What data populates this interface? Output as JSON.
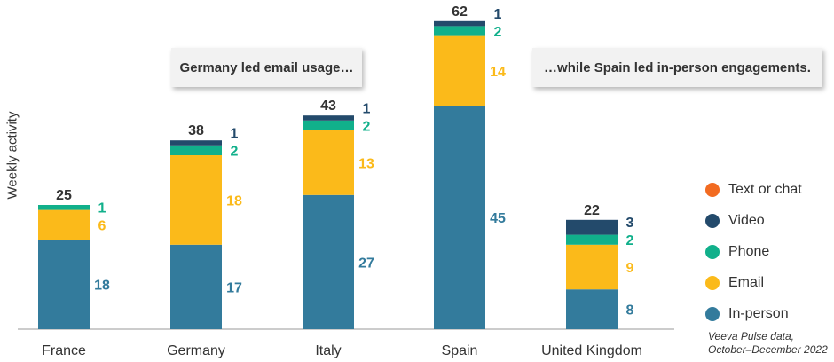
{
  "chart_data": {
    "type": "bar",
    "stacked": true,
    "title": "",
    "xlabel": "",
    "ylabel": "Weekly activity",
    "categories": [
      "France",
      "Germany",
      "Italy",
      "Spain",
      "United Kingdom"
    ],
    "series": [
      {
        "name": "In-person",
        "color": "#337b9c",
        "values": [
          18,
          17,
          27,
          45,
          8
        ]
      },
      {
        "name": "Email",
        "color": "#fbba1a",
        "values": [
          6,
          18,
          13,
          14,
          9
        ]
      },
      {
        "name": "Phone",
        "color": "#11b08b",
        "values": [
          1,
          2,
          2,
          2,
          2
        ]
      },
      {
        "name": "Video",
        "color": "#234a6b",
        "values": [
          null,
          1,
          1,
          1,
          3
        ]
      },
      {
        "name": "Text or chat",
        "color": "#f26b21",
        "values": [
          null,
          null,
          null,
          null,
          null
        ]
      }
    ],
    "totals": [
      25,
      38,
      43,
      62,
      22
    ],
    "legend_order": [
      "Text or chat",
      "Video",
      "Phone",
      "Email",
      "In-person"
    ],
    "legend_position": "right",
    "annotations": [
      "Germany led email usage…",
      "…while Spain led in-person engagements."
    ],
    "source": [
      "Veeva Pulse data,",
      "October–December 2022"
    ]
  },
  "colors": {
    "text": "#333333",
    "axis": "#999999"
  }
}
